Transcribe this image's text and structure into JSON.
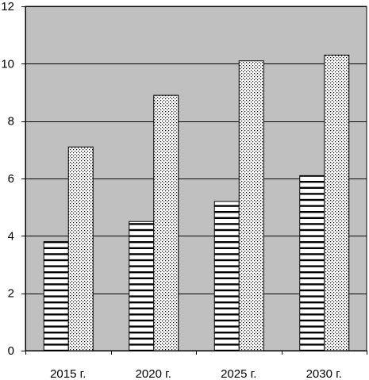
{
  "chart_data": {
    "type": "bar",
    "categories": [
      "2015 г.",
      "2020 г.",
      "2025 г.",
      "2030 г."
    ],
    "series": [
      {
        "values": [
          3.8,
          4.5,
          5.2,
          6.1
        ],
        "pattern": "horizontal-stripes"
      },
      {
        "values": [
          7.1,
          8.9,
          10.1,
          10.3
        ],
        "pattern": "dots"
      }
    ],
    "ylim": [
      0,
      12
    ],
    "yticks": [
      0,
      2,
      4,
      6,
      8,
      10,
      12
    ],
    "grid": true,
    "plot_background": "#c0c0c0",
    "bar_fill": "#ffffff",
    "stroke_color": "#000000"
  }
}
